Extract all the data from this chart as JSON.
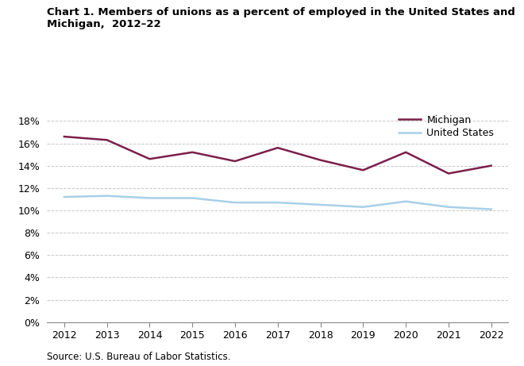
{
  "years": [
    2012,
    2013,
    2014,
    2015,
    2016,
    2017,
    2018,
    2019,
    2020,
    2021,
    2022
  ],
  "michigan": [
    16.6,
    16.3,
    14.6,
    15.2,
    14.4,
    15.6,
    14.5,
    13.6,
    15.2,
    13.3,
    14.0
  ],
  "us": [
    11.2,
    11.3,
    11.1,
    11.1,
    10.7,
    10.7,
    10.5,
    10.3,
    10.8,
    10.3,
    10.1
  ],
  "michigan_color": "#7b1f4b",
  "us_color": "#a8d0e8",
  "title_line1": "Chart 1. Members of unions as a percent of employed in the United States and",
  "title_line2": "Michigan,  2012–22",
  "michigan_label": "Michigan",
  "us_label": "United States",
  "ylim": [
    0,
    19
  ],
  "yticks": [
    0,
    2,
    4,
    6,
    8,
    10,
    12,
    14,
    16,
    18
  ],
  "xlim": [
    2011.6,
    2022.4
  ],
  "source": "Source: U.S. Bureau of Labor Statistics.",
  "line_width": 1.8,
  "plot_bg": "#ffffff",
  "fig_bg": "#ffffff",
  "grid_color": "#c8c8c8",
  "spine_color": "#888888"
}
